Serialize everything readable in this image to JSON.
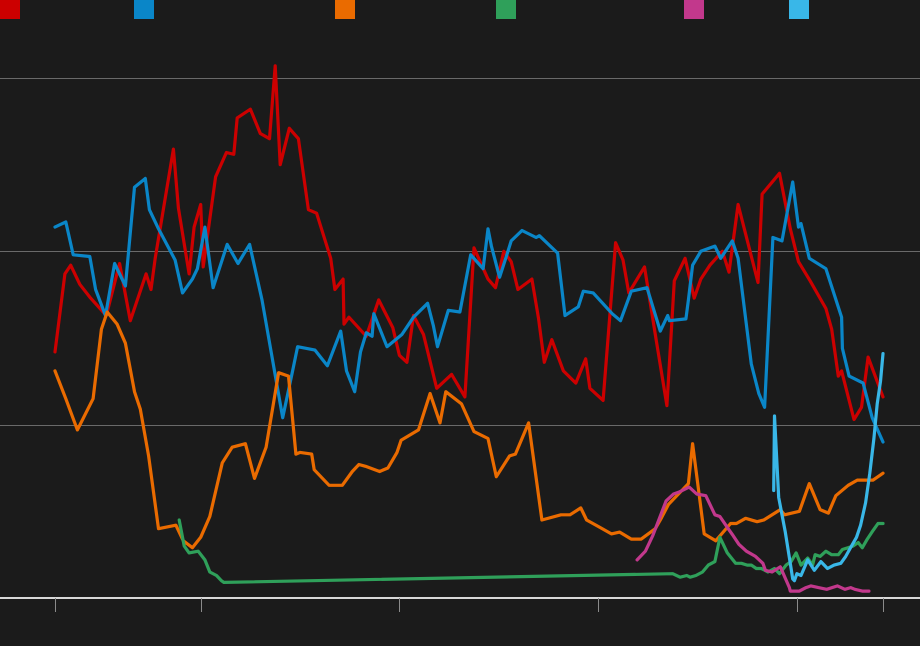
{
  "chart_data": {
    "type": "line",
    "background": "#1b1b1b",
    "gridline_color": "#6a6a6a",
    "baseline_color": "#d8d8d8",
    "ylim": [
      0,
      30
    ],
    "yticks": [
      0,
      10,
      20,
      30
    ],
    "xlim": [
      0,
      100
    ],
    "xticks": [
      0,
      17.6,
      41.6,
      65.6,
      89.6,
      100
    ],
    "legend": {
      "position": "top"
    },
    "series": [
      {
        "color": "#cc0000",
        "x": [
          0.0,
          1.2,
          1.9,
          3.0,
          4.3,
          6.2,
          7.8,
          9.1,
          11.0,
          11.6,
          12.1,
          14.3,
          14.9,
          16.2,
          16.8,
          17.6,
          17.9,
          19.4,
          20.7,
          21.6,
          22.0,
          23.6,
          24.8,
          25.9,
          26.6,
          27.2,
          28.3,
          29.4,
          30.6,
          31.6,
          33.3,
          33.8,
          34.8,
          34.9,
          35.5,
          37.6,
          39.1,
          40.8,
          41.6,
          42.5,
          43.3,
          44.5,
          46.1,
          47.9,
          49.5,
          50.6,
          52.3,
          53.2,
          54.2,
          55.1,
          55.9,
          57.6,
          58.4,
          59.1,
          60.0,
          61.4,
          62.9,
          64.1,
          64.6,
          66.2,
          67.7,
          68.6,
          69.3,
          71.2,
          72.5,
          73.9,
          74.8,
          76.1,
          77.2,
          78.0,
          79.1,
          80.6,
          81.4,
          82.5,
          84.9,
          85.4,
          87.5,
          88.8,
          89.8,
          91.2,
          93.1,
          93.8,
          94.6,
          95.0,
          96.5,
          97.4,
          98.2,
          100.0
        ],
        "y": [
          14.2,
          18.7,
          19.2,
          18.1,
          17.3,
          16.3,
          19.3,
          16.0,
          18.7,
          17.8,
          19.6,
          25.9,
          22.5,
          18.7,
          21.4,
          22.7,
          19.1,
          24.3,
          25.7,
          25.6,
          27.7,
          28.2,
          26.8,
          26.5,
          30.7,
          25.0,
          27.1,
          26.5,
          22.4,
          22.2,
          19.6,
          17.8,
          18.4,
          15.8,
          16.2,
          15.1,
          17.2,
          15.6,
          14.0,
          13.6,
          16.3,
          15.2,
          12.1,
          12.9,
          11.6,
          20.2,
          18.4,
          17.9,
          20.0,
          19.4,
          17.8,
          18.4,
          16.1,
          13.6,
          14.9,
          13.1,
          12.4,
          13.8,
          12.1,
          11.4,
          20.5,
          19.5,
          17.6,
          19.1,
          15.2,
          11.1,
          18.3,
          19.6,
          17.3,
          18.4,
          19.2,
          20.0,
          18.8,
          22.7,
          18.2,
          23.3,
          24.5,
          21.3,
          19.4,
          18.3,
          16.7,
          15.5,
          12.8,
          13.1,
          10.3,
          11.0,
          13.9,
          11.6
        ]
      },
      {
        "color": "#0a86c8",
        "x": [
          0.0,
          1.3,
          2.2,
          4.2,
          4.9,
          6.1,
          7.2,
          8.5,
          9.6,
          10.9,
          11.4,
          12.5,
          14.5,
          15.4,
          16.6,
          17.2,
          18.1,
          19.1,
          20.8,
          22.1,
          23.5,
          25.0,
          27.5,
          28.7,
          29.3,
          31.4,
          32.9,
          34.5,
          35.2,
          36.2,
          36.9,
          37.6,
          38.3,
          38.5,
          40.1,
          41.9,
          43.3,
          45.0,
          45.7,
          46.2,
          47.5,
          48.9,
          50.2,
          51.7,
          52.3,
          52.7,
          53.7,
          54.5,
          55.1,
          56.4,
          58.1,
          58.5,
          60.7,
          61.6,
          63.2,
          63.8,
          65.0,
          67.3,
          68.3,
          69.6,
          71.5,
          73.1,
          74.0,
          74.2,
          76.2,
          76.5,
          77.0,
          78.0,
          79.7,
          80.4,
          81.8,
          82.5,
          84.1,
          85.0,
          85.7,
          86.7,
          87.8,
          89.1,
          89.8,
          90.1,
          91.1,
          93.1,
          95.0,
          95.1,
          95.9,
          97.6,
          98.7,
          100.0
        ],
        "y": [
          21.4,
          21.7,
          19.8,
          19.7,
          17.8,
          16.3,
          19.3,
          18.0,
          23.7,
          24.2,
          22.4,
          21.3,
          19.5,
          17.6,
          18.4,
          19.0,
          21.4,
          17.9,
          20.4,
          19.3,
          20.4,
          17.2,
          10.4,
          13.1,
          14.5,
          14.3,
          13.4,
          15.4,
          13.1,
          11.9,
          14.2,
          15.3,
          15.1,
          16.4,
          14.5,
          15.2,
          16.2,
          17.0,
          15.7,
          14.5,
          16.6,
          16.5,
          19.8,
          19.0,
          21.3,
          20.3,
          18.5,
          19.7,
          20.6,
          21.2,
          20.8,
          20.9,
          19.9,
          16.3,
          16.8,
          17.7,
          17.6,
          16.4,
          16.0,
          17.7,
          17.9,
          15.4,
          16.3,
          16.0,
          16.1,
          17.2,
          19.2,
          20.0,
          20.3,
          19.6,
          20.6,
          19.6,
          13.5,
          11.8,
          11.0,
          20.8,
          20.6,
          24.0,
          21.4,
          21.6,
          19.6,
          19.0,
          16.2,
          14.4,
          12.8,
          12.4,
          10.4,
          9.0
        ]
      },
      {
        "color": "#ea6b00",
        "x": [
          0.0,
          1.3,
          2.7,
          4.6,
          5.6,
          6.3,
          7.5,
          8.5,
          9.6,
          10.3,
          11.3,
          12.5,
          14.6,
          15.5,
          16.6,
          17.6,
          18.7,
          20.2,
          21.4,
          23.0,
          24.1,
          25.5,
          27.0,
          28.2,
          29.1,
          29.6,
          31.0,
          31.3,
          33.1,
          34.7,
          35.9,
          36.7,
          37.5,
          39.2,
          40.2,
          41.3,
          41.8,
          43.9,
          45.3,
          46.5,
          47.2,
          49.1,
          50.6,
          52.3,
          53.3,
          54.9,
          55.6,
          57.2,
          58.8,
          61.1,
          62.2,
          63.5,
          64.2,
          65.7,
          67.2,
          68.2,
          69.6,
          70.8,
          72.5,
          73.1,
          74.1,
          75.5,
          76.5,
          77.0,
          78.4,
          79.8,
          81.6,
          82.3,
          83.4,
          84.8,
          85.6,
          87.6,
          88.1,
          89.9,
          91.1,
          92.4,
          93.4,
          94.3,
          95.8,
          96.9,
          98.8,
          99.7,
          100.0
        ],
        "y": [
          13.1,
          11.5,
          9.7,
          11.5,
          15.5,
          16.5,
          15.8,
          14.7,
          11.9,
          10.9,
          8.2,
          4.0,
          4.2,
          3.3,
          2.9,
          3.5,
          4.7,
          7.8,
          8.7,
          8.9,
          6.9,
          8.7,
          13.0,
          12.8,
          8.3,
          8.4,
          8.3,
          7.4,
          6.5,
          6.5,
          7.3,
          7.7,
          7.6,
          7.3,
          7.5,
          8.4,
          9.1,
          9.7,
          11.8,
          10.1,
          11.9,
          11.2,
          9.6,
          9.2,
          7.0,
          8.2,
          8.3,
          10.1,
          4.5,
          4.8,
          4.8,
          5.2,
          4.5,
          4.1,
          3.7,
          3.8,
          3.4,
          3.4,
          4.0,
          4.5,
          5.4,
          6.1,
          6.6,
          8.9,
          3.7,
          3.3,
          4.3,
          4.3,
          4.6,
          4.4,
          4.5,
          5.1,
          4.8,
          5.0,
          6.6,
          5.1,
          4.9,
          5.9,
          6.5,
          6.8,
          6.8,
          7.1,
          7.2
        ]
      },
      {
        "color": "#2fa05a",
        "x": [
          15.0,
          15.6,
          16.2,
          17.3,
          18.1,
          18.7,
          19.5,
          20.1,
          20.4,
          74.6,
          75.5,
          76.3,
          76.7,
          77.4,
          78.2,
          78.9,
          79.7,
          80.3,
          81.2,
          82.2,
          82.9,
          83.6,
          84.1,
          84.7,
          85.3,
          86.1,
          86.9,
          87.5,
          88.3,
          88.9,
          89.5,
          90.1,
          90.9,
          91.5,
          91.8,
          92.4,
          93.1,
          93.8,
          94.6,
          95.1,
          95.8,
          96.4,
          97.0,
          97.5,
          98.1,
          98.8,
          99.4,
          100.0
        ],
        "y": [
          4.5,
          3.0,
          2.6,
          2.7,
          2.2,
          1.5,
          1.3,
          1.0,
          0.9,
          1.4,
          1.2,
          1.3,
          1.2,
          1.3,
          1.5,
          1.9,
          2.1,
          3.5,
          2.6,
          2.0,
          2.0,
          1.9,
          1.9,
          1.7,
          1.7,
          1.5,
          1.7,
          1.4,
          1.9,
          2.1,
          2.6,
          1.9,
          2.3,
          1.9,
          2.5,
          2.4,
          2.7,
          2.5,
          2.5,
          2.8,
          2.9,
          3.0,
          3.2,
          2.9,
          3.4,
          3.9,
          4.3,
          4.3
        ]
      },
      {
        "color": "#c2388c",
        "x": [
          70.3,
          71.3,
          72.2,
          73.8,
          74.7,
          75.3,
          76.6,
          77.5,
          78.6,
          79.7,
          80.3,
          81.3,
          81.9,
          82.6,
          83.5,
          84.6,
          85.5,
          85.8,
          86.6,
          87.6,
          88.7,
          88.8,
          89.9,
          90.7,
          91.3,
          92.2,
          93.2,
          94.5,
          95.4,
          96.1,
          96.6,
          97.5,
          98.3
        ],
        "y": [
          2.2,
          2.7,
          3.6,
          5.6,
          6.0,
          6.1,
          6.4,
          6.0,
          5.9,
          4.8,
          4.7,
          4.0,
          3.6,
          3.1,
          2.7,
          2.4,
          2.0,
          1.6,
          1.5,
          1.8,
          0.6,
          0.4,
          0.4,
          0.6,
          0.7,
          0.6,
          0.5,
          0.7,
          0.5,
          0.6,
          0.5,
          0.4,
          0.4
        ]
      },
      {
        "color": "#39b7e8",
        "x": [
          86.8,
          86.9,
          87.4,
          88.2,
          88.6,
          88.9,
          89.1,
          89.3,
          89.6,
          90.1,
          90.9,
          91.7,
          92.5,
          93.3,
          94.1,
          94.9,
          95.5,
          96.2,
          96.8,
          97.3,
          97.9,
          98.4,
          98.9,
          99.3,
          99.7,
          100.0
        ],
        "y": [
          6.2,
          10.5,
          5.8,
          3.8,
          2.6,
          1.7,
          1.1,
          1.0,
          1.4,
          1.3,
          2.2,
          1.6,
          2.1,
          1.7,
          1.9,
          2.0,
          2.4,
          3.0,
          3.5,
          4.2,
          5.5,
          7.2,
          9.2,
          11.2,
          12.5,
          14.1
        ]
      }
    ]
  }
}
